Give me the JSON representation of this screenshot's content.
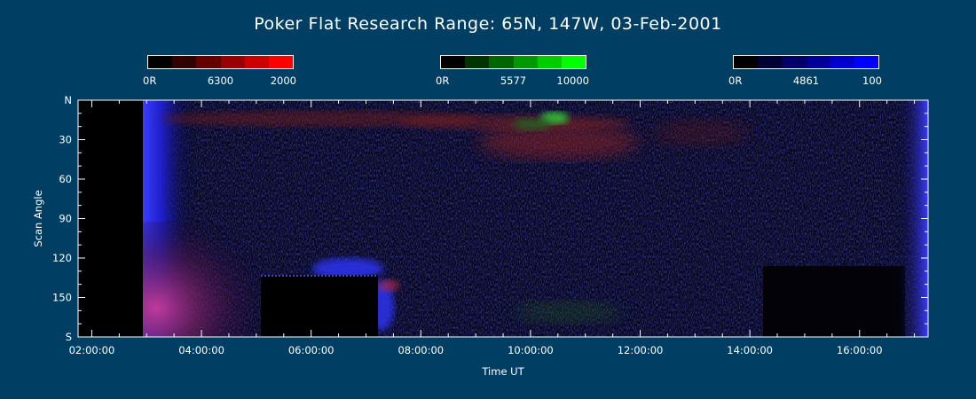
{
  "chart_data": {
    "type": "heatmap",
    "title": "Poker Flat Research Range: 65N, 147W, 03-Feb-2001",
    "xlabel": "Time UT",
    "ylabel": "Scan Angle",
    "x_ticks": [
      "02:00:00",
      "04:00:00",
      "06:00:00",
      "08:00:00",
      "10:00:00",
      "12:00:00",
      "14:00:00",
      "16:00:00"
    ],
    "y_ticks": [
      "N",
      "30",
      "60",
      "90",
      "120",
      "150",
      "S"
    ],
    "x_range_hours": [
      1.75,
      17.25
    ],
    "y_range": [
      0,
      180
    ],
    "colorbars": [
      {
        "name": "6300",
        "min_label": "0R",
        "max_label": "2000",
        "colors": [
          "#000000",
          "#330000",
          "#660000",
          "#990000",
          "#cc0000",
          "#ff0000"
        ]
      },
      {
        "name": "5577",
        "min_label": "0R",
        "max_label": "10000",
        "colors": [
          "#000000",
          "#003300",
          "#006600",
          "#009900",
          "#00cc00",
          "#00ff00"
        ]
      },
      {
        "name": "4861",
        "min_label": "0R",
        "max_label": "100",
        "colors": [
          "#000000",
          "#000033",
          "#000066",
          "#000099",
          "#0000cc",
          "#0000ff"
        ]
      }
    ]
  }
}
